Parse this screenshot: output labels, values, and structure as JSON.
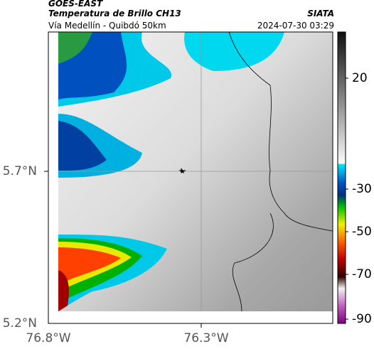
{
  "header": {
    "title": "GOES-EAST",
    "subtitle": "Temperatura de Brillo CH13",
    "route": "Vía Medellín - Quibdó 50km",
    "source": "SIATA",
    "datetime": "2024-07-30 03:29"
  },
  "map": {
    "lat_ticks": [
      "5.7°N",
      "5.2°N"
    ],
    "lon_ticks": [
      "76.8°W",
      "76.3°W"
    ]
  },
  "colorbar": {
    "ticks": [
      "20",
      "-30",
      "-50",
      "-70",
      "-90"
    ]
  }
}
